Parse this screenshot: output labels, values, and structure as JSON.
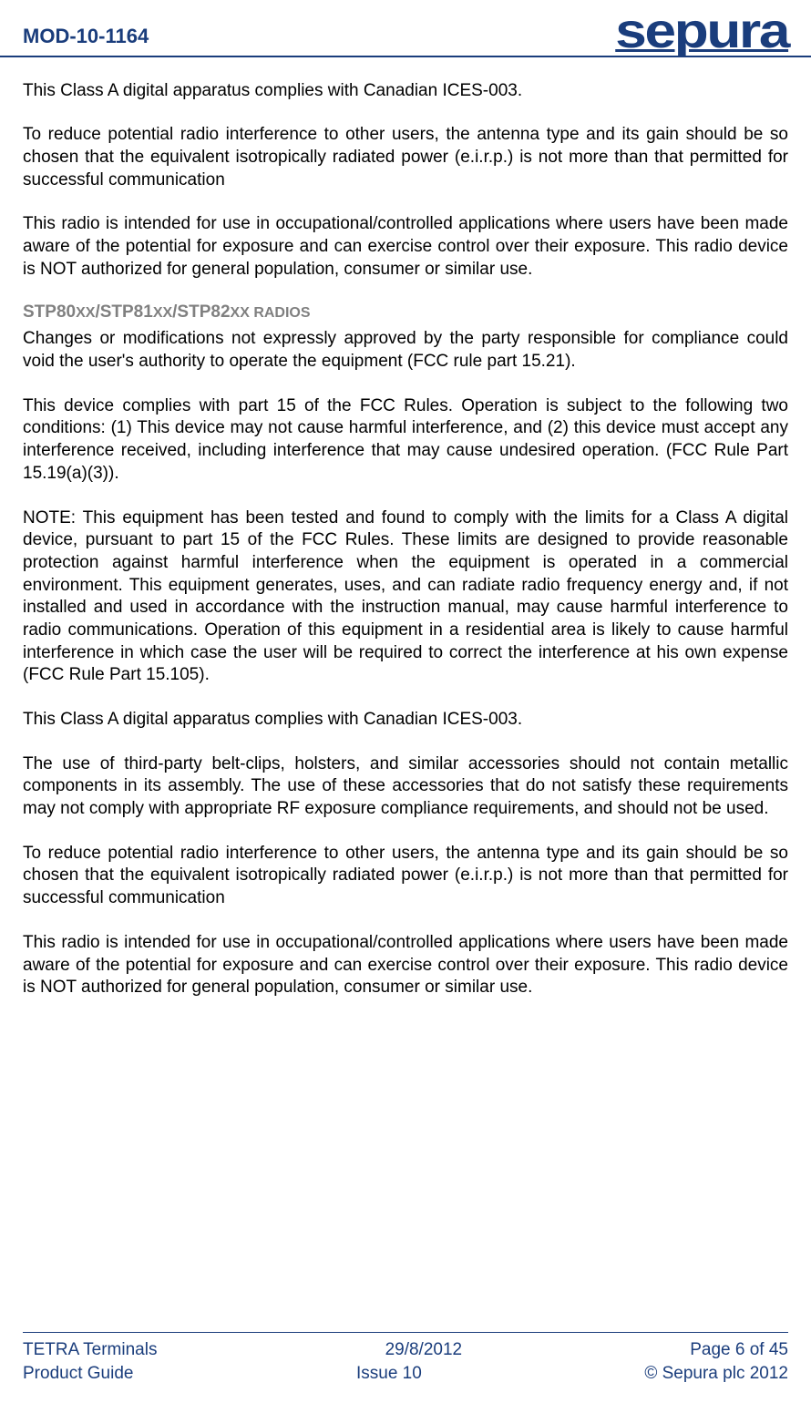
{
  "header": {
    "doc_id": "MOD-10-1164",
    "logo_text": "sepura"
  },
  "colors": {
    "brand": "#1a3d7c",
    "heading_gray": "#808080",
    "body_text": "#000000",
    "background": "#ffffff"
  },
  "typography": {
    "body_fontsize": 19,
    "docid_fontsize": 22,
    "logo_fontsize": 54,
    "heading_fontsize": 19,
    "footer_fontsize": 19
  },
  "paragraphs": {
    "p1": "This Class A digital apparatus complies with Canadian ICES-003.",
    "p2": "To reduce potential radio interference to other users, the antenna type and its gain should be so chosen that the equivalent isotropically radiated power (e.i.r.p.) is not more than that permitted for successful communication",
    "p3": "This radio is intended for use in occupational/controlled applications where users have been made aware of the potential for exposure and can exercise control over their exposure. This radio device is NOT authorized for general population, consumer or similar use.",
    "p4": "Changes or modifications not expressly approved by the party responsible for compliance could void the user's authority to operate the equipment (FCC rule part 15.21).",
    "p5": "This device complies with part 15 of the FCC Rules. Operation is subject to the following two conditions: (1) This device may not cause harmful interference, and (2) this device must accept any interference received, including interference that may cause undesired operation. (FCC Rule Part 15.19(a)(3)).",
    "p6": "NOTE: This equipment has been tested and found to comply with the limits for a Class A digital device, pursuant to part 15 of the FCC Rules. These limits are designed to provide reasonable protection against harmful interference when the equipment is operated in a commercial environment. This equipment generates, uses, and can radiate radio frequency energy and, if not installed and used in accordance with the instruction manual, may cause harmful interference to radio communications. Operation of this equipment in a residential area is likely to cause harmful interference in which case the user will be required to correct the interference at his own expense (FCC Rule Part 15.105).",
    "p7": "This Class A digital apparatus complies with Canadian ICES-003.",
    "p8": "The use of third-party belt-clips, holsters, and similar accessories should not contain metallic components in its assembly. The use of these accessories that do not satisfy these requirements may not comply with appropriate RF exposure compliance requirements, and should not be used.",
    "p9": "To reduce potential radio interference to other users, the antenna type and its gain should be so chosen that the equivalent isotropically radiated power (e.i.r.p.) is not more than that permitted for successful communication",
    "p10": "This radio is intended for use in occupational/controlled applications where users have been made aware of the potential for exposure and can exercise control over their exposure. This radio device is NOT authorized for general population, consumer or similar use."
  },
  "section_heading": {
    "full": "STP80XX/STP81XX/STP82XX RADIOS"
  },
  "footer": {
    "left_line1": "TETRA Terminals",
    "left_line2": "Product Guide",
    "center_line1": "29/8/2012",
    "center_line2": "Issue 10",
    "right_line1": "Page 6 of 45",
    "right_line2": "© Sepura plc 2012"
  }
}
